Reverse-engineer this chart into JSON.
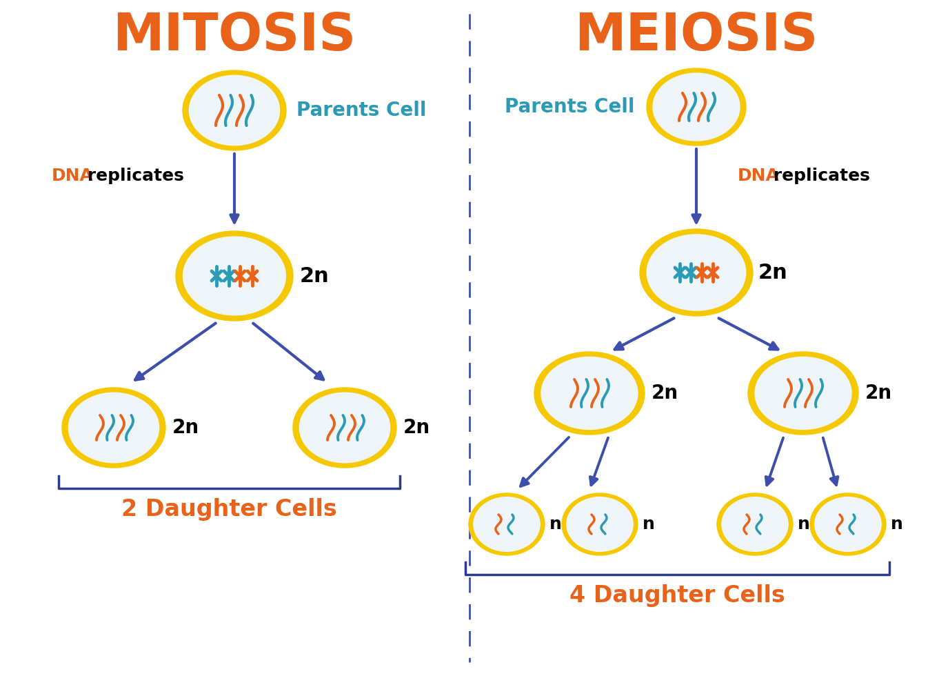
{
  "bg_color": "#ffffff",
  "orange": "#E8621A",
  "teal": "#2B9BB5",
  "dark_blue": "#2E3B8B",
  "mid_blue": "#5B6BAF",
  "light_blue_arrow": "#7B8CC4",
  "cell_outer": "#F5C800",
  "cell_inner": "#E8EFF5",
  "cell_inner2": "#D8E8F0",
  "title_mitosis": "MITOSIS",
  "title_meiosis": "MEIOSIS",
  "parents_cell": "Parents Cell",
  "dna_replicates_dna": "DNA",
  "dna_replicates_rest": " replicates",
  "label_2n": "2n",
  "label_n": "n",
  "label_2_daughter": "2 Daughter Cells",
  "label_4_daughter": "4 Daughter Cells"
}
